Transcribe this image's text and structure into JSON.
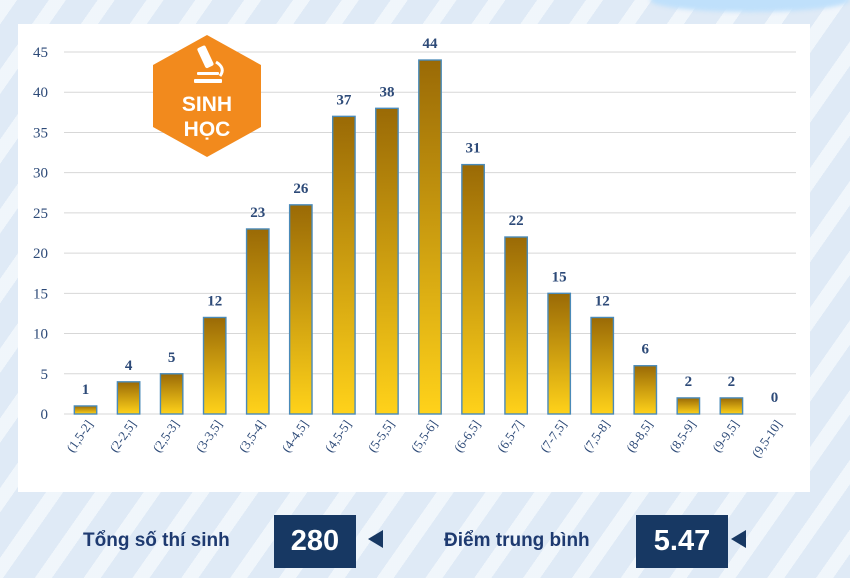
{
  "badge": {
    "line1": "SINH",
    "line2": "HỌC"
  },
  "chart_data": {
    "type": "bar",
    "categories": [
      "(1,5-2]",
      "(2-2,5]",
      "(2,5-3]",
      "(3-3,5]",
      "(3,5-4]",
      "(4-4,5]",
      "(4,5-5]",
      "(5-5,5]",
      "(5,5-6]",
      "(6-6,5]",
      "(6,5-7]",
      "(7-7,5]",
      "(7,5-8]",
      "(8-8,5]",
      "(8,5-9]",
      "(9-9,5]",
      "(9,5-10]"
    ],
    "values": [
      1,
      4,
      5,
      12,
      23,
      26,
      37,
      38,
      44,
      31,
      22,
      15,
      12,
      6,
      2,
      2,
      0
    ],
    "yticks": [
      0,
      5,
      10,
      15,
      20,
      25,
      30,
      35,
      40,
      45
    ],
    "ylim": [
      0,
      45
    ],
    "grid": true,
    "bar_color_top": "#9a6a06",
    "bar_color_bottom": "#ffd21a",
    "bar_edge_color": "#4a8ab8"
  },
  "footer": {
    "total_label": "Tổng số thí sinh",
    "total_value": "280",
    "average_label": "Điểm trung bình",
    "average_value": "5.47"
  }
}
